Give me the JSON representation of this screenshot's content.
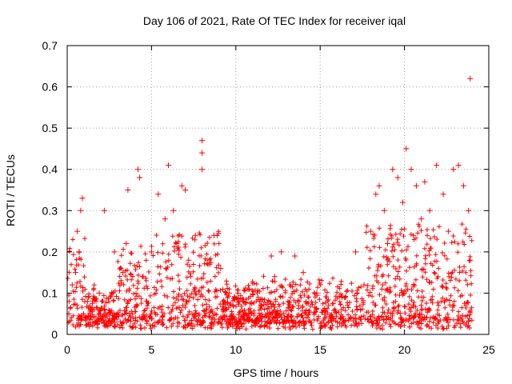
{
  "chart_data": {
    "type": "scatter",
    "title": "Day 106 of 2021, Rate Of TEC Index for receiver iqal",
    "xlabel": "GPS time / hours",
    "ylabel": "ROTI / TECUs",
    "xlim": [
      0,
      25
    ],
    "ylim": [
      0,
      0.7
    ],
    "xticks": [
      0,
      5,
      10,
      15,
      20,
      25
    ],
    "yticks": [
      0,
      0.1,
      0.2,
      0.3,
      0.4,
      0.5,
      0.6,
      0.7
    ],
    "xtick_labels": [
      "0",
      "5",
      "10",
      "15",
      "20",
      "25"
    ],
    "ytick_labels": [
      "0",
      "0.1",
      "0.2",
      "0.3",
      "0.4",
      "0.5",
      "0.6",
      "0.7"
    ],
    "grid": true,
    "marker": "+",
    "series": [
      {
        "name": "ROTI",
        "color": "#ff0000",
        "x": [
          0.1,
          0.3,
          0.5,
          0.6,
          0.7,
          0.8,
          0.9,
          1.2,
          1.5,
          1.9,
          2.2,
          2.8,
          3.3,
          3.5,
          3.6,
          4.2,
          4.3,
          4.5,
          5.0,
          5.4,
          5.8,
          6.0,
          6.3,
          6.5,
          6.8,
          7.0,
          7.2,
          7.6,
          8.0,
          8.0,
          8.0,
          8.3,
          8.7,
          9.1,
          9.6,
          10.2,
          10.8,
          11.5,
          12.1,
          12.3,
          12.7,
          13.2,
          13.5,
          14.0,
          14.8,
          15.5,
          16.3,
          17.1,
          17.6,
          18.0,
          18.3,
          18.5,
          18.8,
          19.0,
          19.3,
          19.6,
          19.9,
          20.1,
          20.4,
          20.7,
          21.0,
          21.2,
          21.5,
          21.9,
          22.3,
          22.6,
          22.9,
          23.2,
          23.5,
          23.8,
          23.9,
          23.9
        ],
        "y": [
          0.05,
          0.12,
          0.15,
          0.25,
          0.2,
          0.3,
          0.33,
          0.08,
          0.06,
          0.1,
          0.3,
          0.2,
          0.15,
          0.22,
          0.35,
          0.4,
          0.38,
          0.14,
          0.2,
          0.34,
          0.28,
          0.41,
          0.3,
          0.22,
          0.36,
          0.35,
          0.18,
          0.24,
          0.47,
          0.44,
          0.4,
          0.18,
          0.24,
          0.16,
          0.1,
          0.08,
          0.11,
          0.07,
          0.19,
          0.14,
          0.2,
          0.12,
          0.19,
          0.15,
          0.1,
          0.07,
          0.09,
          0.2,
          0.12,
          0.25,
          0.34,
          0.36,
          0.3,
          0.22,
          0.4,
          0.38,
          0.32,
          0.45,
          0.4,
          0.36,
          0.28,
          0.37,
          0.3,
          0.41,
          0.34,
          0.25,
          0.4,
          0.41,
          0.36,
          0.3,
          0.62,
          0.18
        ]
      }
    ]
  }
}
